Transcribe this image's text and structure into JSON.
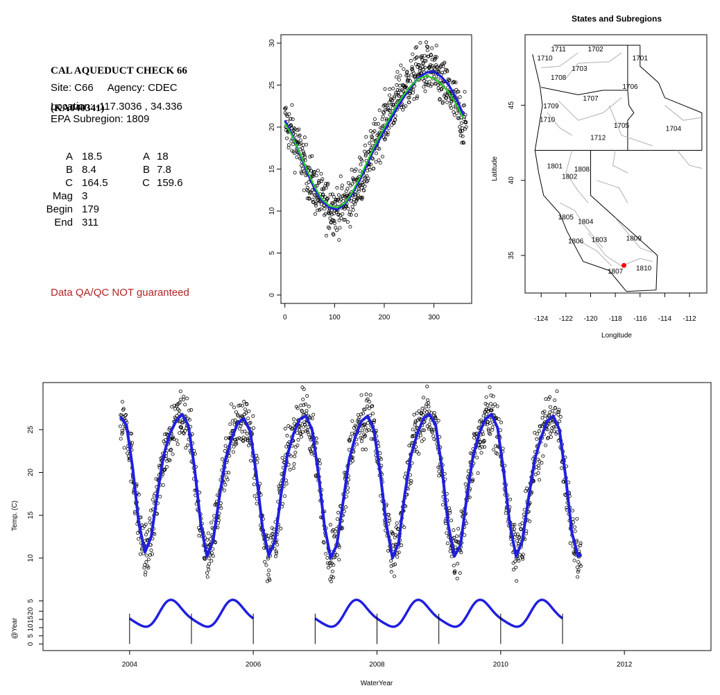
{
  "header": {
    "title_line1": "CAL AQUEDUCT CHECK 66",
    "title_line2": "(KA040341)",
    "site": "Site: C66     Agency: CDEC",
    "location": "Location: -117.3036 , 34.336",
    "subregion": "EPA Subregion: 1809",
    "qa_note": "Data QA/QC NOT guaranteed"
  },
  "params": [
    {
      "label": "A",
      "value": "18.5",
      "label2": "A",
      "value2": "18"
    },
    {
      "label": "B",
      "value": "8.4",
      "label2": "B",
      "value2": "7.8"
    },
    {
      "label": "C",
      "value": "164.5",
      "label2": "C",
      "value2": "159.6"
    },
    {
      "label": "Mag",
      "value": "3"
    },
    {
      "label": "Begin",
      "value": "179"
    },
    {
      "label": "End",
      "value": "311"
    }
  ],
  "colors": {
    "fit_blue": "#1f1fe0",
    "fit_green": "#22cc22",
    "points": "#000000",
    "site_marker": "#ff0000",
    "qa_text": "#b22222",
    "map_border": "#b0b0b0"
  },
  "chart_data": [
    {
      "type": "scatter",
      "title": "",
      "xlabel": "",
      "ylabel": "",
      "xlim": [
        -8,
        376
      ],
      "ylim": [
        -1,
        31
      ],
      "xticks": [
        0,
        100,
        200,
        300
      ],
      "yticks": [
        0,
        5,
        10,
        15,
        20,
        25,
        30
      ],
      "series": [
        {
          "role": "points",
          "x": [
            0,
            15,
            30,
            45,
            60,
            75,
            90,
            105,
            120,
            135,
            150,
            165,
            180,
            195,
            210,
            225,
            240,
            255,
            270,
            285,
            300,
            315,
            330,
            345,
            360
          ],
          "y": [
            20.7,
            19.2,
            17.0,
            14.6,
            12.6,
            11.2,
            10.5,
            10.3,
            10.7,
            11.8,
            13.4,
            15.4,
            17.7,
            19.9,
            21.8,
            23.3,
            24.5,
            25.6,
            26.8,
            27.0,
            26.5,
            25.2,
            24.2,
            22.5,
            20.5
          ],
          "scatter_sd": 1.5
        },
        {
          "role": "fit",
          "color": "blue",
          "x": [
            0,
            15,
            30,
            45,
            60,
            75,
            90,
            105,
            120,
            135,
            150,
            165,
            180,
            195,
            210,
            225,
            240,
            255,
            270,
            285,
            300,
            315,
            330,
            345,
            360
          ],
          "y": [
            20.8,
            19.0,
            16.8,
            14.6,
            12.6,
            11.2,
            10.4,
            10.2,
            10.8,
            12.0,
            13.6,
            15.5,
            17.4,
            19.0,
            20.6,
            22.2,
            23.6,
            24.9,
            25.9,
            26.5,
            26.6,
            26.0,
            25.0,
            23.4,
            21.4
          ]
        },
        {
          "role": "fit",
          "color": "green",
          "x": [
            0,
            15,
            30,
            45,
            60,
            75,
            90,
            105,
            120,
            135,
            150,
            165,
            180,
            195,
            210,
            225,
            240,
            255,
            270,
            285,
            300,
            315,
            330,
            345,
            360
          ],
          "y": [
            20.5,
            18.9,
            16.9,
            14.8,
            12.9,
            11.4,
            10.6,
            10.4,
            10.9,
            12.2,
            13.9,
            15.8,
            17.7,
            19.4,
            21.0,
            22.6,
            23.9,
            25.0,
            25.8,
            26.1,
            25.8,
            25.1,
            24.1,
            22.7,
            21.0
          ]
        }
      ]
    },
    {
      "type": "line",
      "title": "States and Subregions",
      "xlabel": "Longitude",
      "ylabel": "Latitude",
      "xlim": [
        -125.3,
        -110.6
      ],
      "ylim": [
        32.5,
        49.7
      ],
      "xticks": [
        -124,
        -122,
        -120,
        -118,
        -116,
        -114,
        -112
      ],
      "yticks": [
        35,
        40,
        45
      ],
      "grid": false,
      "site": {
        "lon": -117.3036,
        "lat": 34.336
      },
      "region_labels": [
        {
          "label": "1711",
          "lon": -122.6,
          "lat": 48.6
        },
        {
          "label": "1702",
          "lon": -119.6,
          "lat": 48.6
        },
        {
          "label": "1710",
          "lon": -123.7,
          "lat": 48.0
        },
        {
          "label": "1701",
          "lon": -116.0,
          "lat": 48.0
        },
        {
          "label": "1703",
          "lon": -120.9,
          "lat": 47.3
        },
        {
          "label": "1708",
          "lon": -122.6,
          "lat": 46.7
        },
        {
          "label": "1706",
          "lon": -116.8,
          "lat": 46.1
        },
        {
          "label": "1707",
          "lon": -120.0,
          "lat": 45.3
        },
        {
          "label": "1709",
          "lon": -123.2,
          "lat": 44.8
        },
        {
          "label": "1710",
          "lon": -123.5,
          "lat": 43.9
        },
        {
          "label": "1705",
          "lon": -117.5,
          "lat": 43.5
        },
        {
          "label": "1704",
          "lon": -113.3,
          "lat": 43.3
        },
        {
          "label": "1712",
          "lon": -119.4,
          "lat": 42.7
        },
        {
          "label": "1801",
          "lon": -122.9,
          "lat": 40.8
        },
        {
          "label": "1808",
          "lon": -120.7,
          "lat": 40.6
        },
        {
          "label": "1802",
          "lon": -121.7,
          "lat": 40.1
        },
        {
          "label": "1805",
          "lon": -122.0,
          "lat": 37.4
        },
        {
          "label": "1804",
          "lon": -120.4,
          "lat": 37.1
        },
        {
          "label": "1806",
          "lon": -121.2,
          "lat": 35.8
        },
        {
          "label": "1803",
          "lon": -119.3,
          "lat": 35.9
        },
        {
          "label": "1809",
          "lon": -116.5,
          "lat": 36.0
        },
        {
          "label": "1810",
          "lon": -115.7,
          "lat": 34.0
        },
        {
          "label": "1807",
          "lon": -118.0,
          "lat": 33.8
        }
      ]
    },
    {
      "type": "line",
      "title": "",
      "xlabel": "WaterYear",
      "ylabel": "Temp. (C)",
      "xlim": [
        2002.6,
        2013.4
      ],
      "ylim": [
        -0.8,
        30.5
      ],
      "xticks": [
        2004,
        2006,
        2008,
        2010,
        2012
      ],
      "yticks": [
        5,
        10,
        15,
        20,
        25
      ],
      "series": [
        {
          "role": "fit",
          "color": "blue",
          "x": [
            2003.85,
            2003.95,
            2004.05,
            2004.15,
            2004.25,
            2004.35,
            2004.45,
            2004.55,
            2004.65,
            2004.75,
            2004.85,
            2004.95,
            2005.05,
            2005.15,
            2005.25,
            2005.35,
            2005.45,
            2005.55,
            2005.65,
            2005.75,
            2005.85,
            2005.95,
            2006.05,
            2006.15,
            2006.25,
            2006.35,
            2006.45,
            2006.55,
            2006.65,
            2006.75,
            2006.85,
            2006.95,
            2007.05,
            2007.15,
            2007.25,
            2007.35,
            2007.45,
            2007.55,
            2007.65,
            2007.75,
            2007.85,
            2007.95,
            2008.05,
            2008.15,
            2008.25,
            2008.35,
            2008.45,
            2008.55,
            2008.65,
            2008.75,
            2008.85,
            2008.95,
            2009.05,
            2009.15,
            2009.25,
            2009.35,
            2009.45,
            2009.55,
            2009.65,
            2009.75,
            2009.85,
            2009.95,
            2010.05,
            2010.15,
            2010.25,
            2010.35,
            2010.45,
            2010.55,
            2010.65,
            2010.75,
            2010.85,
            2010.95,
            2011.05,
            2011.15,
            2011.25,
            2011.3
          ],
          "y": [
            26.5,
            25.5,
            20.5,
            14.0,
            10.7,
            12.5,
            17.5,
            22.0,
            24.5,
            26.0,
            26.8,
            25.5,
            20.5,
            14.0,
            10.2,
            12.0,
            17.0,
            21.5,
            24.0,
            25.8,
            26.3,
            24.8,
            19.8,
            13.5,
            10.3,
            12.0,
            17.5,
            22.0,
            24.5,
            26.2,
            26.6,
            25.0,
            20.0,
            13.8,
            10.0,
            11.5,
            16.5,
            21.5,
            24.2,
            26.0,
            26.6,
            25.0,
            20.0,
            14.0,
            10.0,
            11.8,
            17.5,
            22.0,
            24.5,
            26.3,
            26.8,
            25.5,
            20.5,
            14.0,
            10.2,
            11.5,
            17.0,
            21.8,
            24.5,
            26.2,
            26.8,
            25.2,
            20.0,
            13.8,
            10.2,
            12.0,
            17.0,
            21.5,
            24.0,
            26.0,
            26.6,
            25.0,
            19.5,
            13.0,
            10.2,
            10.5
          ],
          "scatter_sd": 1.6
        },
        {
          "role": "annual_fit",
          "color": "blue",
          "label": "@Year",
          "segments": [
            [
              2004.0,
              2006.0
            ],
            [
              2007.0,
              2011.0
            ]
          ],
          "ylim": [
            -1,
            29
          ],
          "yticks": [
            0,
            5,
            10,
            15,
            20
          ],
          "year_marks": [
            2004,
            2005,
            2006,
            2007,
            2008,
            2009,
            2010,
            2011
          ]
        }
      ]
    }
  ]
}
